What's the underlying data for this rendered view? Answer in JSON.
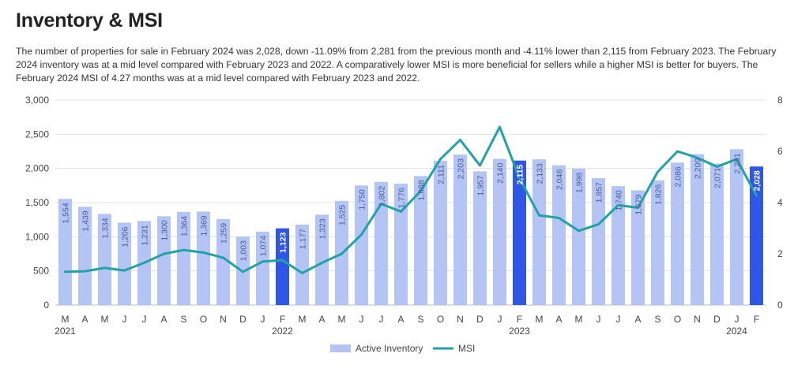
{
  "page": {
    "title": "Inventory & MSI",
    "description": "The number of properties for sale in February 2024 was 2,028, down -11.09% from 2,281 from the previous month and -4.11% lower than 2,115 from February 2023. The February 2024 inventory was at a mid level compared with February 2023 and 2022. A comparatively lower MSI is more beneficial for sellers while a higher MSI is better for buyers. The February 2024 MSI of 4.27 months was at a mid level compared with February 2023 and 2022."
  },
  "colors": {
    "bar": "#b4c5f5",
    "bar_highlight": "#2f56e6",
    "line": "#1fa3a6",
    "grid": "#e3e3e3",
    "label_light": "#4a5c9c",
    "label_dark": "#ffffff"
  },
  "chart_data": {
    "type": "bar",
    "title": "",
    "categories": [
      "M",
      "A",
      "M",
      "J",
      "J",
      "A",
      "S",
      "O",
      "N",
      "D",
      "J",
      "F",
      "M",
      "A",
      "M",
      "J",
      "J",
      "A",
      "S",
      "O",
      "N",
      "D",
      "J",
      "F",
      "M",
      "A",
      "M",
      "J",
      "J",
      "A",
      "S",
      "O",
      "N",
      "D",
      "J",
      "F"
    ],
    "year_labels": [
      {
        "index": 0,
        "label": "2021"
      },
      {
        "index": 11,
        "label": "2022"
      },
      {
        "index": 23,
        "label": "2023"
      },
      {
        "index": 34,
        "label": "2024"
      }
    ],
    "highlight_indices": [
      11,
      23,
      35
    ],
    "series": [
      {
        "name": "Active Inventory",
        "type": "bar",
        "axis": "left",
        "values": [
          1554,
          1439,
          1334,
          1206,
          1231,
          1300,
          1364,
          1369,
          1259,
          1003,
          1074,
          1123,
          1177,
          1323,
          1525,
          1750,
          1802,
          1776,
          1888,
          2111,
          2203,
          1957,
          2140,
          2115,
          2133,
          2046,
          1998,
          1857,
          1740,
          1679,
          1826,
          2086,
          2209,
          2071,
          2281,
          2028
        ],
        "labels": [
          "1,554",
          "1,439",
          "1,334",
          "1,206",
          "1,231",
          "1,300",
          "1,364",
          "1,369",
          "1,259",
          "1,003",
          "1,074",
          "1,123",
          "1,177",
          "1,323",
          "1,525",
          "1,750",
          "1,802",
          "1,776",
          "1,888",
          "2,111",
          "2,203",
          "1,957",
          "2,140",
          "2,115",
          "2,133",
          "2,046",
          "1,998",
          "1,857",
          "1,740",
          "1,679",
          "1,826",
          "2,086",
          "2,209",
          "2,071",
          "2,281",
          "2,028"
        ]
      },
      {
        "name": "MSI",
        "type": "line",
        "axis": "right",
        "values": [
          1.3,
          1.32,
          1.45,
          1.35,
          1.65,
          2.0,
          2.15,
          2.05,
          1.85,
          1.3,
          1.7,
          1.75,
          1.25,
          1.65,
          2.0,
          2.75,
          3.95,
          3.65,
          4.45,
          5.7,
          6.45,
          5.45,
          6.95,
          4.95,
          3.5,
          3.4,
          2.9,
          3.15,
          3.9,
          3.8,
          5.2,
          6.0,
          5.75,
          5.4,
          5.7,
          4.27
        ]
      }
    ],
    "y_left": {
      "min": 0,
      "max": 3000,
      "ticks": [
        0,
        500,
        1000,
        1500,
        2000,
        2500,
        3000
      ],
      "tick_labels": [
        "0",
        "500",
        "1,000",
        "1,500",
        "2,000",
        "2,500",
        "3,000"
      ]
    },
    "y_right": {
      "min": 0,
      "max": 8,
      "ticks": [
        0,
        2,
        4,
        6,
        8
      ],
      "tick_labels": [
        "0",
        "2",
        "4",
        "6",
        "8"
      ]
    },
    "grid": true,
    "legend": {
      "position": "bottom",
      "items": [
        "Active Inventory",
        "MSI"
      ]
    }
  }
}
